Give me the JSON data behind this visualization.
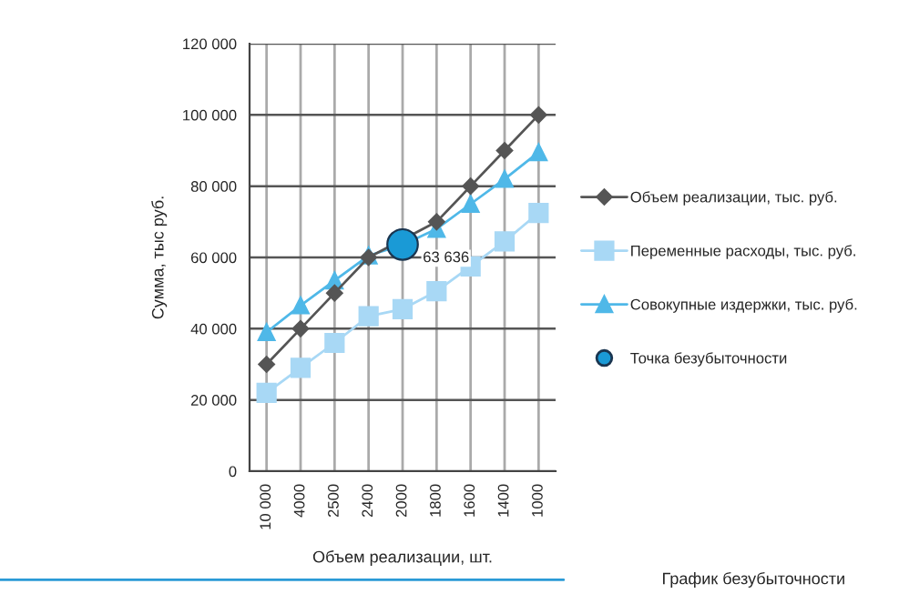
{
  "chart_data": {
    "type": "line",
    "title": "График безубыточности",
    "xlabel": "Объем реализации, шт.",
    "ylabel": "Сумма, тыс руб.",
    "categories": [
      "10 000",
      "4000",
      "2500",
      "2400",
      "2000",
      "1800",
      "1600",
      "1400",
      "1000"
    ],
    "series": [
      {
        "name": "Объем реализации, тыс. руб.",
        "color": "#555555",
        "marker": "diamond",
        "values": [
          30000,
          40000,
          50000,
          60000,
          null,
          70000,
          80000,
          90000,
          100000
        ]
      },
      {
        "name": "Переменные расходы, тыс. руб.",
        "color": "#a8d8f5",
        "marker": "square",
        "values": [
          22000,
          29000,
          36000,
          43500,
          45500,
          50500,
          57500,
          64500,
          72500
        ]
      },
      {
        "name": "Совокупные издержки, тыс. руб.",
        "color": "#4fb8e8",
        "marker": "triangle",
        "values": [
          39000,
          46500,
          53500,
          60500,
          63500,
          68000,
          75000,
          82000,
          89500
        ]
      },
      {
        "name": "Точка безубыточности",
        "type": "scatter",
        "color": "#1a9ad6",
        "marker": "circle",
        "values": [
          null,
          null,
          null,
          null,
          63636,
          null,
          null,
          null,
          null
        ],
        "value_labels": [
          null,
          null,
          null,
          null,
          "63 636",
          null,
          null,
          null,
          null
        ]
      }
    ],
    "ylim": [
      0,
      120000
    ],
    "yticks": [
      {
        "value": 0,
        "label": "0"
      },
      {
        "value": 20000,
        "label": "20 000"
      },
      {
        "value": 40000,
        "label": "40 000"
      },
      {
        "value": 60000,
        "label": "60 000"
      },
      {
        "value": 80000,
        "label": "80 000"
      },
      {
        "value": 100000,
        "label": "100 000"
      },
      {
        "value": 120000,
        "label": "120 000"
      }
    ],
    "grid": true,
    "legend": "right"
  }
}
